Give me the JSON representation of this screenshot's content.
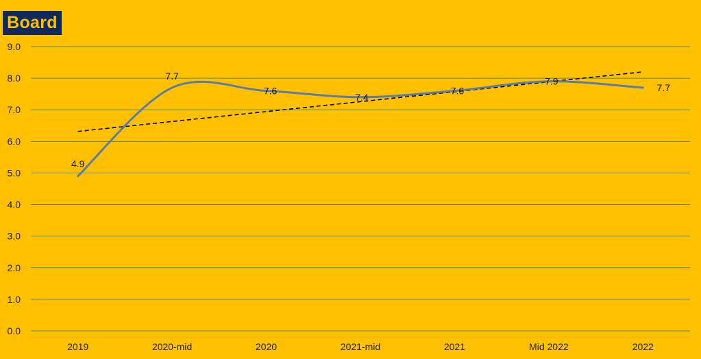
{
  "title": "Board",
  "colors": {
    "background": "#FFC000",
    "series_line": "#5B7DA8",
    "gridline": "#5E8C6A",
    "trendline": "#000000",
    "title_badge": "#0E2A5C"
  },
  "chart_data": {
    "type": "line",
    "title": "Board",
    "categories": [
      "2019",
      "2020-mid",
      "2020",
      "2021-mid",
      "2021",
      "Mid 2022",
      "2022"
    ],
    "series": [
      {
        "values": [
          4.9,
          7.7,
          7.6,
          7.4,
          7.6,
          7.9,
          7.7
        ],
        "smooth": true
      }
    ],
    "data_labels": [
      "4.9",
      "7.7",
      "7.6",
      "7.4",
      "7.6",
      "7.9",
      "7.7"
    ],
    "y_ticks": [
      "0.0",
      "1.0",
      "2.0",
      "3.0",
      "4.0",
      "5.0",
      "6.0",
      "7.0",
      "8.0",
      "9.0"
    ],
    "ylim": [
      0,
      9
    ],
    "trendline": {
      "type": "linear",
      "style": "dashed"
    },
    "grid": true,
    "legend": "none"
  }
}
